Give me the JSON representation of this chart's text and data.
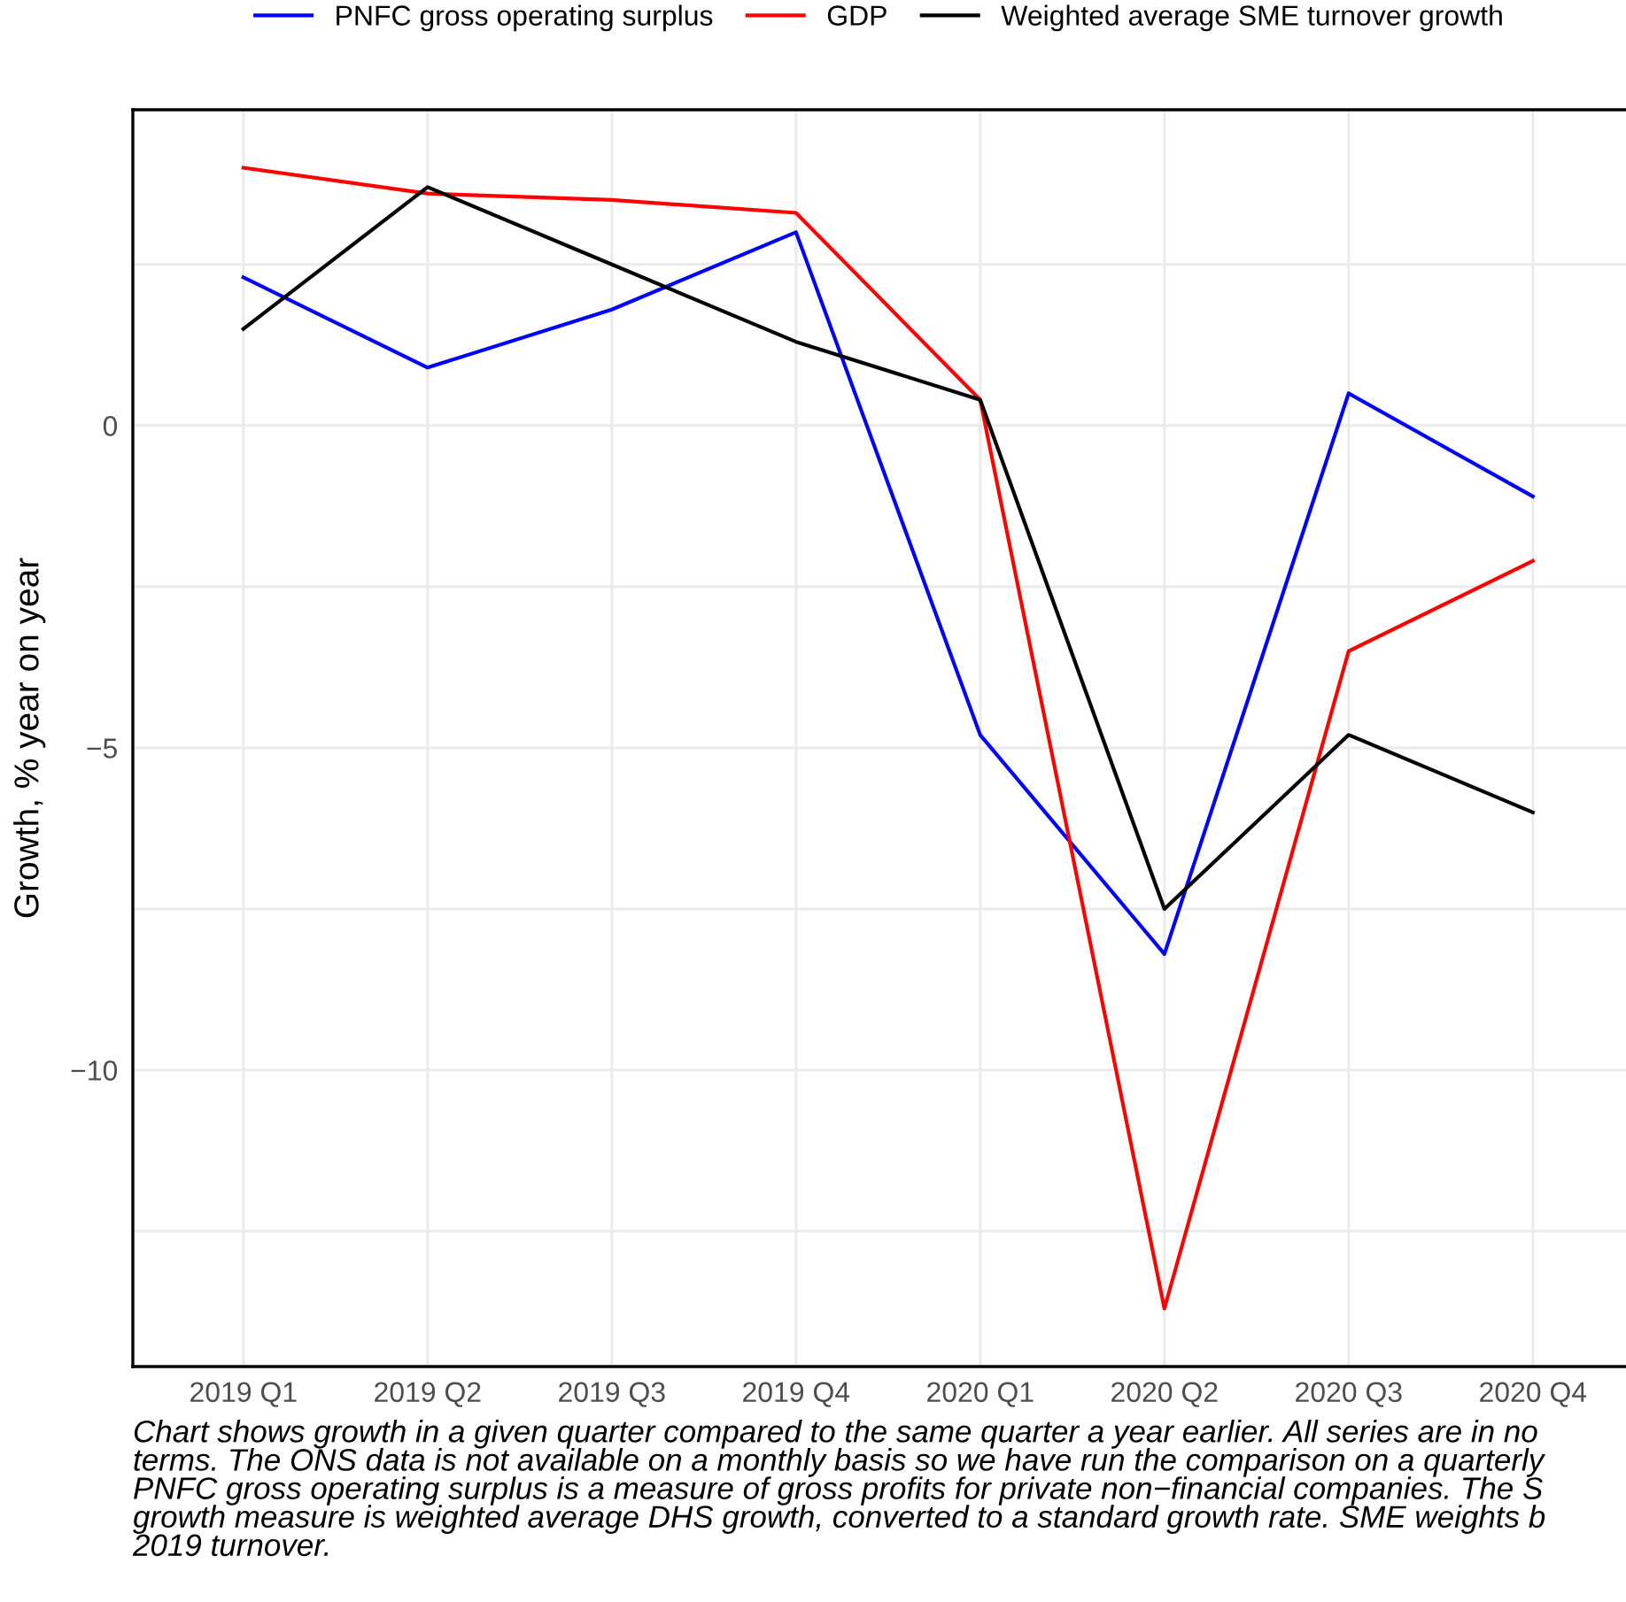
{
  "chart_data": {
    "type": "line",
    "ylabel": "Growth, % year on year",
    "categories": [
      "2019 Q1",
      "2019 Q2",
      "2019 Q3",
      "2019 Q4",
      "2020 Q1",
      "2020 Q2",
      "2020 Q3",
      "2020 Q4"
    ],
    "series": [
      {
        "name": "PNFC gross operating surplus",
        "color": "#0000ff",
        "values": [
          2.3,
          0.9,
          1.8,
          3.0,
          -4.8,
          -8.2,
          0.5,
          -1.1
        ]
      },
      {
        "name": "GDP",
        "color": "#ff0000",
        "values": [
          4.0,
          3.6,
          3.5,
          3.3,
          0.4,
          -13.7,
          -3.5,
          -2.1
        ]
      },
      {
        "name": "Weighted average SME turnover growth",
        "color": "#000000",
        "values": [
          1.5,
          3.7,
          2.5,
          1.3,
          0.4,
          -7.5,
          -4.8,
          -6.0
        ]
      }
    ],
    "ylim": [
      -14.6,
      4.9
    ],
    "yticks": [
      {
        "value": -12.5,
        "label": null
      },
      {
        "value": -10,
        "label": "−10"
      },
      {
        "value": -7.5,
        "label": null
      },
      {
        "value": -5,
        "label": "−5"
      },
      {
        "value": -2.5,
        "label": null
      },
      0,
      {
        "value": 2.5,
        "label": null
      }
    ],
    "grid": true,
    "legend": "top",
    "line_style": "solid",
    "marker": "none",
    "annotations": [
      "Chart shows growth in a given quarter compared to the same quarter a year earlier. All series are in no\nterms. The ONS data is not available on a monthly basis so we have run the comparison on a quarterly\nPNFC gross operating surplus is a measure of gross profits for private non−financial companies. The S\ngrowth measure is weighted average DHS growth, converted to a standard growth rate. SME weights b\n2019 turnover."
    ]
  }
}
